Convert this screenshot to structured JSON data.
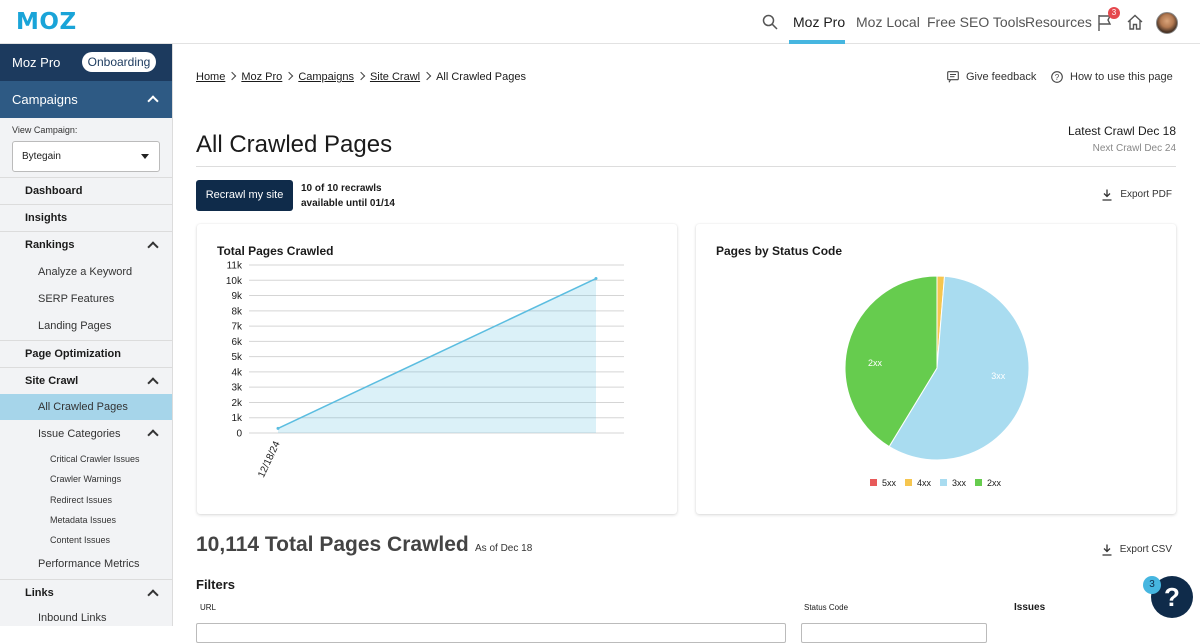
{
  "topbar": {
    "logo": "MOZ",
    "nav": [
      {
        "label": "Moz Pro"
      },
      {
        "label": "Moz Local"
      },
      {
        "label": "Free SEO Tools"
      },
      {
        "label": "Resources"
      }
    ],
    "notifications_count": "3",
    "search_icon": "search-icon",
    "flag_icon": "flag-icon",
    "home_icon": "home-icon"
  },
  "sidebar": {
    "product": "Moz Pro",
    "onboarding": "Onboarding",
    "campaigns": "Campaigns",
    "view_campaign_label": "View Campaign:",
    "campaign_selected": "Bytegain",
    "items": [
      {
        "label": "Dashboard"
      },
      {
        "label": "Insights"
      },
      {
        "label": "Rankings"
      },
      {
        "label": "Analyze a Keyword"
      },
      {
        "label": "SERP Features"
      },
      {
        "label": "Landing Pages"
      },
      {
        "label": "Page Optimization"
      },
      {
        "label": "Site Crawl"
      },
      {
        "label": "All Crawled Pages"
      },
      {
        "label": "Issue Categories"
      },
      {
        "label": "Critical Crawler Issues"
      },
      {
        "label": "Crawler Warnings"
      },
      {
        "label": "Redirect Issues"
      },
      {
        "label": "Metadata Issues"
      },
      {
        "label": "Content Issues"
      },
      {
        "label": "Performance Metrics"
      },
      {
        "label": "Links"
      },
      {
        "label": "Inbound Links"
      }
    ]
  },
  "breadcrumb": [
    "Home",
    "Moz Pro",
    "Campaigns",
    "Site Crawl",
    "All Crawled Pages"
  ],
  "header": {
    "give_feedback": "Give feedback",
    "how_to_use": "How to use this page",
    "title": "All Crawled Pages",
    "latest_crawl": "Latest Crawl Dec 18",
    "next_crawl": "Next Crawl Dec 24"
  },
  "recrawl": {
    "button": "Recrawl my site",
    "info_line1": "10 of 10 recrawls",
    "info_line2": "available until 01/14"
  },
  "export_pdf": "Export PDF",
  "summary": {
    "count": "10,114 Total Pages Crawled",
    "as_of": "As of Dec 18",
    "export_csv": "Export CSV"
  },
  "filters": {
    "title": "Filters",
    "url_label": "URL",
    "status_code_label": "Status Code",
    "issues_label": "Issues"
  },
  "help": {
    "badge": "3",
    "icon": "?"
  },
  "colors": {
    "accent": "#46b6e0",
    "navy": "#0f2b4a",
    "active_item": "#a6d5ea"
  },
  "chart_data": [
    {
      "type": "area",
      "title": "Total Pages Crawled",
      "y_ticks": [
        "0",
        "1k",
        "2k",
        "3k",
        "4k",
        "5k",
        "6k",
        "7k",
        "8k",
        "9k",
        "10k",
        "11k"
      ],
      "ylim": [
        0,
        11000
      ],
      "x_ticks": [
        "12/18/24"
      ],
      "series": [
        {
          "values": [
            300,
            10114
          ]
        }
      ],
      "color": "#5bbde0"
    },
    {
      "type": "pie",
      "title": "Pages by Status Code",
      "legend": [
        "5xx",
        "4xx",
        "3xx",
        "2xx"
      ],
      "slices": [
        {
          "label": "5xx",
          "value": 0.0,
          "color": "#e85a5a"
        },
        {
          "label": "4xx",
          "value": 1.3,
          "color": "#f6c64f"
        },
        {
          "label": "3xx",
          "value": 57.4,
          "color": "#a9dcf0"
        },
        {
          "label": "2xx",
          "value": 41.3,
          "color": "#66cc4e"
        }
      ],
      "slice_labels": [
        "2xx",
        "3xx"
      ]
    }
  ]
}
